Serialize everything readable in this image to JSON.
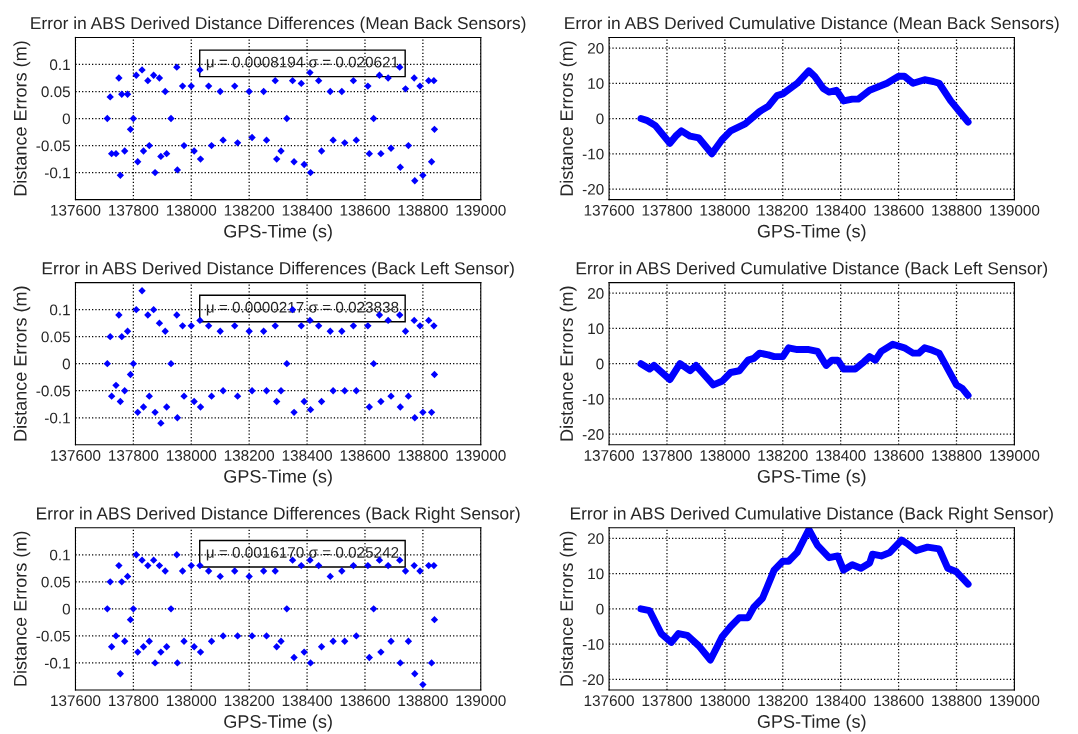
{
  "chart_data": [
    {
      "type": "scatter",
      "title": "Error in ABS Derived Distance Differences (Mean Back Sensors)",
      "xlabel": "GPS-Time (s)",
      "ylabel": "Distance Errors (m)",
      "marker": "diamond",
      "grid": true,
      "xlim": [
        137600,
        139000
      ],
      "xticks": [
        137600,
        137800,
        138000,
        138200,
        138400,
        138600,
        138800,
        139000
      ],
      "ylim": [
        -0.15,
        0.15
      ],
      "yticks": [
        -0.1,
        -0.05,
        0,
        0.05,
        0.1
      ],
      "annotations": [
        "μ = 0.0008194 σ = 0.020621"
      ],
      "series": [
        {
          "color": "#0000ff",
          "x": [
            137710,
            137720,
            137725,
            137740,
            137750,
            137755,
            137760,
            137770,
            137780,
            137790,
            137800,
            137810,
            137815,
            137830,
            137835,
            137850,
            137855,
            137870,
            137875,
            137890,
            137895,
            137910,
            137915,
            137930,
            137950,
            137952,
            137970,
            137975,
            138000,
            138010,
            138030,
            138032,
            138060,
            138070,
            138100,
            138110,
            138150,
            138160,
            138200,
            138210,
            138250,
            138260,
            138290,
            138295,
            138310,
            138330,
            138350,
            138355,
            138380,
            138390,
            138410,
            138412,
            138440,
            138450,
            138480,
            138490,
            138520,
            138530,
            138560,
            138570,
            138610,
            138615,
            138630,
            138650,
            138655,
            138680,
            138690,
            138720,
            138722,
            138740,
            138750,
            138770,
            138772,
            138790,
            138800,
            138820,
            138830,
            138838,
            138840
          ],
          "values": [
            0,
            0.04,
            -0.065,
            -0.065,
            0.075,
            -0.105,
            0.045,
            -0.06,
            0.045,
            -0.02,
            0,
            0.08,
            -0.08,
            0.09,
            -0.06,
            0.07,
            -0.05,
            0.08,
            -0.1,
            0.075,
            -0.07,
            0.05,
            -0.065,
            0,
            0.095,
            -0.095,
            0.06,
            -0.05,
            0.06,
            -0.06,
            0.09,
            -0.075,
            0.06,
            -0.05,
            0.05,
            -0.04,
            0.06,
            -0.045,
            0.05,
            -0.035,
            0.05,
            -0.04,
            0.07,
            -0.075,
            -0.06,
            0,
            0.07,
            -0.08,
            0.065,
            -0.085,
            0.085,
            -0.1,
            0.07,
            -0.06,
            0.05,
            -0.04,
            0.05,
            -0.045,
            0.07,
            -0.04,
            0.06,
            -0.065,
            0,
            0.08,
            -0.065,
            0.075,
            -0.055,
            0.095,
            -0.09,
            0.055,
            -0.05,
            0.075,
            -0.115,
            0.06,
            -0.105,
            0.07,
            -0.08,
            0.07,
            -0.02
          ]
        }
      ]
    },
    {
      "type": "line",
      "title": "Error in ABS Derived Cumulative Distance (Mean Back Sensors)",
      "xlabel": "GPS-Time (s)",
      "ylabel": "Distance Errors (m)",
      "marker": "none",
      "line_style": "solid",
      "grid": true,
      "xlim": [
        137600,
        139000
      ],
      "xticks": [
        137600,
        137800,
        138000,
        138200,
        138400,
        138600,
        138800,
        139000
      ],
      "ylim": [
        -23,
        23
      ],
      "yticks": [
        -20,
        -10,
        0,
        10,
        20
      ],
      "series": [
        {
          "color": "#0000ff",
          "x": [
            137710,
            137730,
            137760,
            137810,
            137830,
            137850,
            137880,
            137910,
            137955,
            137990,
            138020,
            138070,
            138120,
            138150,
            138180,
            138200,
            138250,
            138290,
            138310,
            138340,
            138360,
            138385,
            138410,
            138440,
            138460,
            138500,
            138560,
            138600,
            138620,
            138650,
            138690,
            138720,
            138740,
            138780,
            138840
          ],
          "values": [
            0,
            -0.5,
            -2,
            -7,
            -5,
            -3.5,
            -5,
            -5.5,
            -10,
            -6,
            -3.5,
            -1.5,
            2,
            3.5,
            6.5,
            7,
            10,
            13.5,
            12,
            8.5,
            7.5,
            8,
            5,
            5.5,
            5.5,
            8,
            10,
            12,
            12,
            10,
            11,
            10.5,
            10,
            5,
            -1
          ]
        }
      ]
    },
    {
      "type": "scatter",
      "title": "Error in ABS Derived Distance Differences (Back Left Sensor)",
      "xlabel": "GPS-Time (s)",
      "ylabel": "Distance Errors (m)",
      "marker": "diamond",
      "grid": true,
      "xlim": [
        137600,
        139000
      ],
      "xticks": [
        137600,
        137800,
        138000,
        138200,
        138400,
        138600,
        138800,
        139000
      ],
      "ylim": [
        -0.15,
        0.15
      ],
      "yticks": [
        -0.1,
        -0.05,
        0,
        0.05,
        0.1
      ],
      "annotations": [
        "μ = 0.0000217 σ = 0.023838"
      ],
      "series": [
        {
          "color": "#0000ff",
          "x": [
            137710,
            137720,
            137725,
            137740,
            137750,
            137755,
            137760,
            137770,
            137780,
            137790,
            137800,
            137810,
            137815,
            137830,
            137835,
            137850,
            137855,
            137870,
            137875,
            137890,
            137895,
            137910,
            137915,
            137930,
            137950,
            137952,
            137970,
            137975,
            138000,
            138010,
            138030,
            138032,
            138060,
            138070,
            138100,
            138110,
            138150,
            138160,
            138200,
            138210,
            138250,
            138260,
            138290,
            138295,
            138310,
            138330,
            138350,
            138355,
            138380,
            138390,
            138410,
            138412,
            138440,
            138450,
            138480,
            138490,
            138520,
            138530,
            138560,
            138570,
            138610,
            138615,
            138630,
            138650,
            138655,
            138680,
            138690,
            138720,
            138722,
            138740,
            138750,
            138770,
            138772,
            138790,
            138800,
            138820,
            138830,
            138838,
            138840
          ],
          "values": [
            0,
            0.05,
            -0.06,
            -0.04,
            0.09,
            -0.07,
            0.05,
            -0.05,
            0.06,
            -0.02,
            0,
            0.1,
            -0.09,
            0.135,
            -0.08,
            0.09,
            -0.06,
            0.1,
            -0.09,
            0.075,
            -0.11,
            0.06,
            -0.08,
            0,
            0.09,
            -0.1,
            0.07,
            -0.06,
            0.07,
            -0.07,
            0.08,
            -0.08,
            0.07,
            -0.06,
            0.06,
            -0.05,
            0.07,
            -0.06,
            0.06,
            -0.05,
            0.06,
            -0.05,
            0.07,
            -0.07,
            -0.05,
            0,
            0.1,
            -0.09,
            0.07,
            -0.07,
            0.08,
            -0.085,
            0.07,
            -0.07,
            0.06,
            -0.05,
            0.06,
            -0.05,
            0.07,
            -0.05,
            0.07,
            -0.08,
            0,
            0.09,
            -0.07,
            0.08,
            -0.06,
            0.09,
            -0.08,
            0.06,
            -0.06,
            0.08,
            -0.1,
            0.07,
            -0.09,
            0.08,
            -0.09,
            0.07,
            -0.02
          ]
        }
      ]
    },
    {
      "type": "line",
      "title": "Error in ABS Derived Cumulative Distance (Back Left Sensor)",
      "xlabel": "GPS-Time (s)",
      "ylabel": "Distance Errors (m)",
      "marker": "none",
      "line_style": "solid",
      "grid": true,
      "xlim": [
        137600,
        139000
      ],
      "xticks": [
        137600,
        137800,
        138000,
        138200,
        138400,
        138600,
        138800,
        139000
      ],
      "ylim": [
        -23,
        23
      ],
      "yticks": [
        -20,
        -10,
        0,
        10,
        20
      ],
      "series": [
        {
          "color": "#0000ff",
          "x": [
            137710,
            137740,
            137755,
            137810,
            137845,
            137880,
            137900,
            137960,
            137990,
            138020,
            138050,
            138080,
            138100,
            138120,
            138150,
            138170,
            138200,
            138220,
            138250,
            138290,
            138320,
            138350,
            138370,
            138390,
            138410,
            138450,
            138480,
            138500,
            138520,
            138540,
            138580,
            138620,
            138650,
            138670,
            138690,
            138710,
            138740,
            138760,
            138800,
            138820,
            138840
          ],
          "values": [
            0,
            -1.5,
            -0.5,
            -4.5,
            0,
            -2,
            -0.5,
            -6,
            -5,
            -2.5,
            -2,
            1,
            1.5,
            3,
            2.5,
            2,
            2,
            4.5,
            4,
            4,
            3.5,
            -0.5,
            1,
            1,
            -1.5,
            -1.5,
            0.5,
            2,
            1,
            3.5,
            5.5,
            4.5,
            3,
            3,
            4.5,
            4,
            3,
            0,
            -6,
            -7,
            -9
          ]
        }
      ]
    },
    {
      "type": "scatter",
      "title": "Error in ABS Derived Distance Differences (Back Right Sensor)",
      "xlabel": "GPS-Time (s)",
      "ylabel": "Distance Errors (m)",
      "marker": "diamond",
      "grid": true,
      "xlim": [
        137600,
        139000
      ],
      "xticks": [
        137600,
        137800,
        138000,
        138200,
        138400,
        138600,
        138800,
        139000
      ],
      "ylim": [
        -0.15,
        0.15
      ],
      "yticks": [
        -0.1,
        -0.05,
        0,
        0.05,
        0.1
      ],
      "annotations": [
        "μ = 0.0016170 σ = 0.025242"
      ],
      "series": [
        {
          "color": "#0000ff",
          "x": [
            137710,
            137720,
            137725,
            137740,
            137750,
            137755,
            137760,
            137770,
            137780,
            137790,
            137800,
            137810,
            137815,
            137830,
            137835,
            137850,
            137855,
            137870,
            137875,
            137890,
            137895,
            137910,
            137915,
            137930,
            137950,
            137952,
            137970,
            137975,
            138000,
            138010,
            138030,
            138032,
            138060,
            138070,
            138100,
            138110,
            138150,
            138160,
            138200,
            138210,
            138250,
            138260,
            138290,
            138295,
            138310,
            138330,
            138350,
            138355,
            138380,
            138390,
            138410,
            138412,
            138440,
            138450,
            138480,
            138490,
            138520,
            138530,
            138560,
            138570,
            138610,
            138615,
            138630,
            138650,
            138655,
            138680,
            138690,
            138720,
            138722,
            138740,
            138750,
            138770,
            138772,
            138790,
            138800,
            138820,
            138830,
            138838,
            138840
          ],
          "values": [
            0,
            0.05,
            -0.07,
            -0.05,
            0.08,
            -0.12,
            0.05,
            -0.06,
            0.06,
            -0.02,
            0,
            0.1,
            -0.08,
            0.09,
            -0.07,
            0.08,
            -0.06,
            0.09,
            -0.1,
            0.08,
            -0.08,
            0.07,
            -0.07,
            0,
            0.1,
            -0.1,
            0.07,
            -0.06,
            0.08,
            -0.07,
            0.08,
            -0.08,
            0.07,
            -0.06,
            0.06,
            -0.05,
            0.07,
            -0.05,
            0.06,
            -0.05,
            0.07,
            -0.05,
            0.07,
            -0.07,
            -0.06,
            0,
            0.09,
            -0.09,
            0.08,
            -0.08,
            0.09,
            -0.1,
            0.08,
            -0.07,
            0.06,
            -0.06,
            0.07,
            -0.06,
            0.08,
            -0.05,
            0.08,
            -0.09,
            0,
            0.09,
            -0.08,
            0.08,
            -0.06,
            0.09,
            -0.1,
            0.07,
            -0.06,
            0.08,
            -0.12,
            0.07,
            -0.14,
            0.08,
            -0.1,
            0.08,
            -0.02
          ]
        }
      ]
    },
    {
      "type": "line",
      "title": "Error in ABS Derived Cumulative Distance (Back Right Sensor)",
      "xlabel": "GPS-Time (s)",
      "ylabel": "Distance Errors (m)",
      "marker": "none",
      "line_style": "solid",
      "grid": true,
      "xlim": [
        137600,
        139000
      ],
      "xticks": [
        137600,
        137800,
        138000,
        138200,
        138400,
        138600,
        138800,
        139000
      ],
      "ylim": [
        -23,
        23
      ],
      "yticks": [
        -20,
        -10,
        0,
        10,
        20
      ],
      "series": [
        {
          "color": "#0000ff",
          "x": [
            137710,
            137740,
            137780,
            137815,
            137840,
            137870,
            137910,
            137950,
            137990,
            138020,
            138050,
            138080,
            138100,
            138130,
            138170,
            138200,
            138220,
            138250,
            138290,
            138320,
            138360,
            138390,
            138410,
            138440,
            138470,
            138500,
            138510,
            138540,
            138570,
            138610,
            138630,
            138660,
            138680,
            138700,
            138740,
            138770,
            138800,
            138840
          ],
          "values": [
            0,
            -0.5,
            -7,
            -9.5,
            -7,
            -7.5,
            -10.5,
            -14.5,
            -8,
            -5,
            -2.5,
            -2.5,
            0.5,
            3,
            11,
            13.5,
            13.5,
            16,
            22.5,
            18,
            14.5,
            15,
            11,
            12.5,
            11.5,
            13,
            15.5,
            15,
            16,
            19.5,
            18.5,
            16.5,
            17,
            17.5,
            17,
            11.5,
            10.5,
            7
          ]
        }
      ]
    }
  ]
}
